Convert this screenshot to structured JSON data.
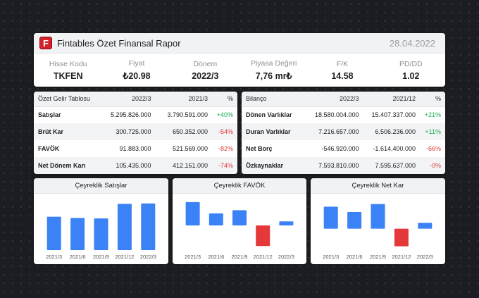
{
  "header": {
    "logo_letter": "F",
    "title": "Fintables Özet Finansal Rapor",
    "date": "28.04.2022"
  },
  "metrics": [
    {
      "label": "Hisse Kodu",
      "value": "TKFEN"
    },
    {
      "label": "Fiyat",
      "value": "₺20.98"
    },
    {
      "label": "Dönem",
      "value": "2022/3"
    },
    {
      "label": "Piyasa Değeri",
      "value": "7,76 mr₺"
    },
    {
      "label": "F/K",
      "value": "14.58"
    },
    {
      "label": "PD/DD",
      "value": "1.02"
    }
  ],
  "income": {
    "headers": [
      "Özet Gelir Tablosu",
      "2022/3",
      "2021/3",
      "%"
    ],
    "rows": [
      {
        "label": "Satışlar",
        "a": "5.295.826.000",
        "b": "3.790.591.000",
        "pct": "+40%"
      },
      {
        "label": "Brüt Kar",
        "a": "300.725.000",
        "b": "650.352.000",
        "pct": "-54%"
      },
      {
        "label": "FAVÖK",
        "a": "91.883.000",
        "b": "521.569.000",
        "pct": "-82%"
      },
      {
        "label": "Net Dönem Karı",
        "a": "105.435.000",
        "b": "412.161.000",
        "pct": "-74%"
      }
    ]
  },
  "balance": {
    "headers": [
      "Bilanço",
      "2022/3",
      "2021/12",
      "%"
    ],
    "rows": [
      {
        "label": "Dönen Varlıklar",
        "a": "18.580.004.000",
        "b": "15.407.337.000",
        "pct": "+21%"
      },
      {
        "label": "Duran Varlıklar",
        "a": "7.216.657.000",
        "b": "6.506.236.000",
        "pct": "+11%"
      },
      {
        "label": "Net Borç",
        "a": "-546.920.000",
        "b": "-1.614.400.000",
        "pct": "-66%"
      },
      {
        "label": "Özkaynaklar",
        "a": "7.593.810.000",
        "b": "7.595.637.000",
        "pct": "-0%"
      }
    ]
  },
  "colors": {
    "positive": "#1eac52",
    "negative": "#e03b3b",
    "bar_blue": "#3b82f6",
    "bar_red": "#e5383b"
  },
  "chart_data": [
    {
      "type": "bar",
      "title": "Çeyreklik Satışlar",
      "categories": [
        "2021/3",
        "2021/6",
        "2021/9",
        "2021/12",
        "2022/3"
      ],
      "values": [
        3.79,
        3.65,
        3.6,
        5.25,
        5.3
      ],
      "ylim": [
        0,
        5.6
      ]
    },
    {
      "type": "bar",
      "title": "Çeyreklik FAVÖK",
      "categories": [
        "2021/3",
        "2021/6",
        "2021/9",
        "2021/12",
        "2022/3"
      ],
      "values": [
        0.52,
        0.27,
        0.34,
        -0.46,
        0.09
      ],
      "ylim": [
        -0.55,
        0.55
      ],
      "red_index": 3
    },
    {
      "type": "bar",
      "title": "Çeyreklik Net Kar",
      "categories": [
        "2021/3",
        "2021/6",
        "2021/9",
        "2021/12",
        "2022/3"
      ],
      "values": [
        0.41,
        0.31,
        0.46,
        -0.33,
        0.11
      ],
      "ylim": [
        -0.4,
        0.52
      ],
      "red_index": 3
    }
  ]
}
